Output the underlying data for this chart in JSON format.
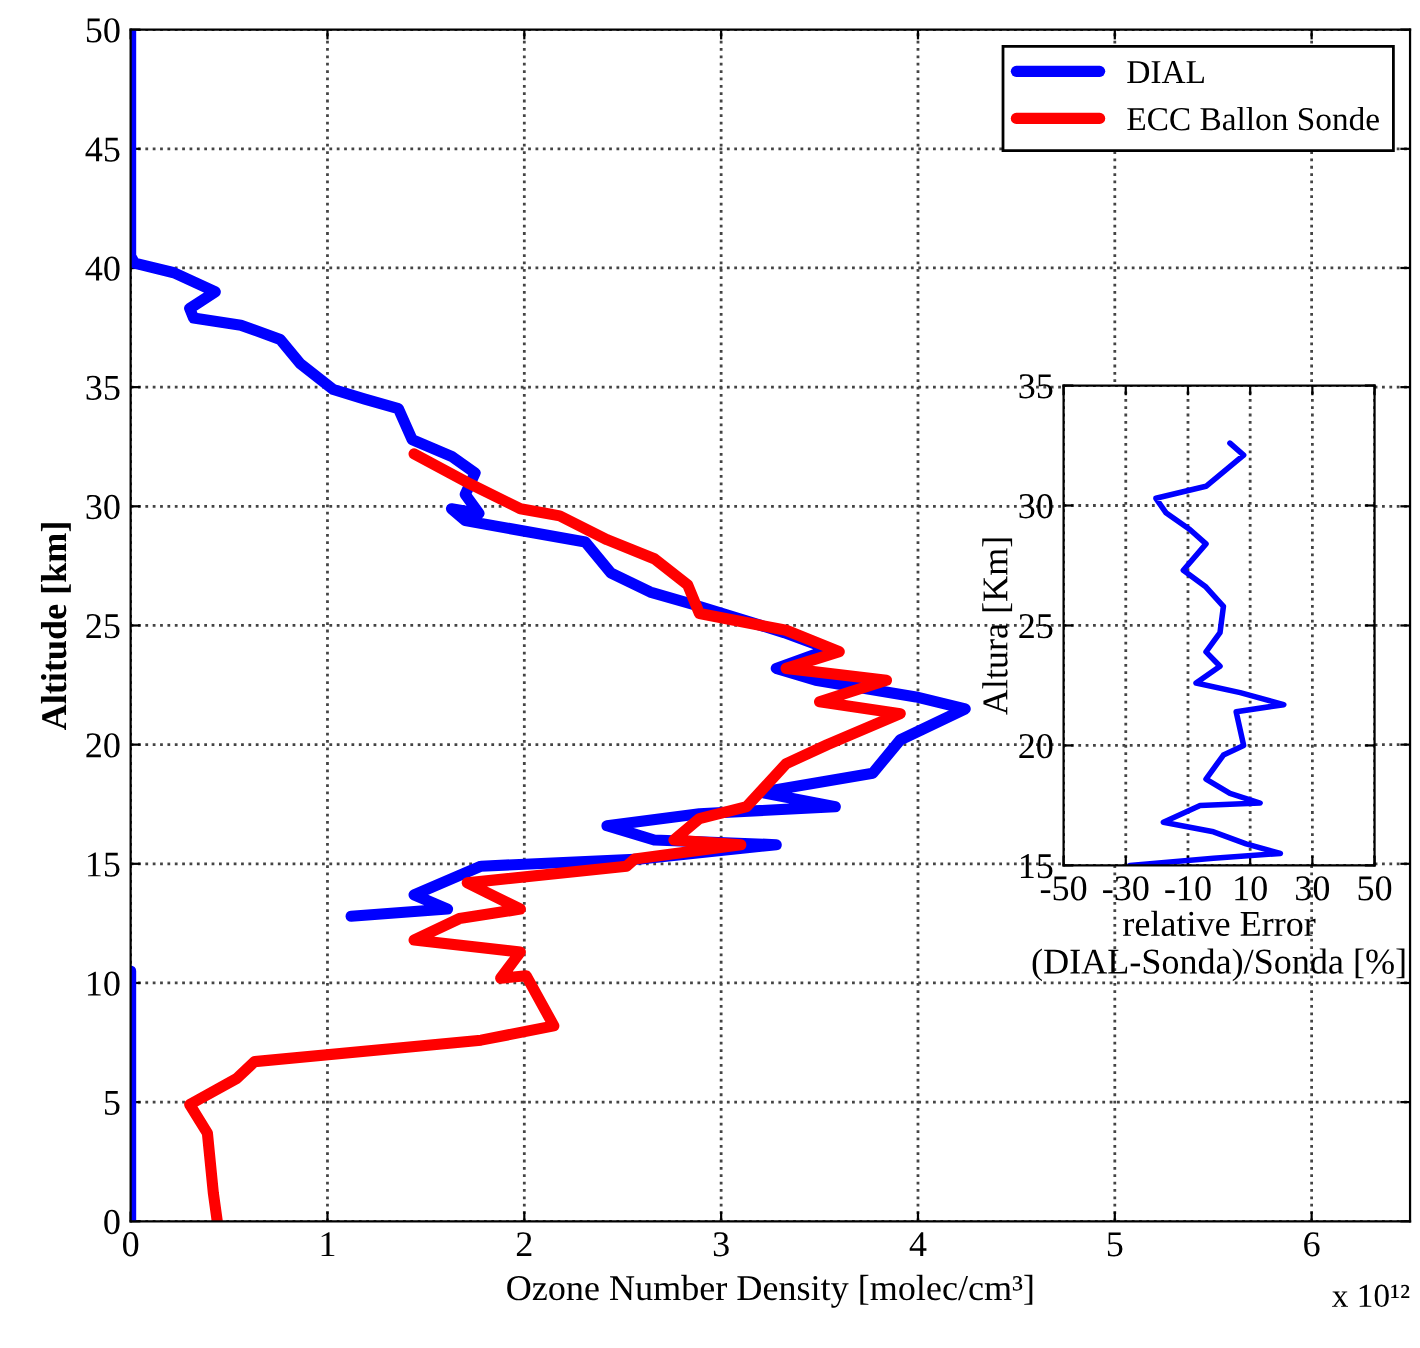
{
  "chart_data": [
    {
      "type": "line",
      "xlabel": "Ozone Number Density [molec/cm³]",
      "ylabel": "Altitude [km]",
      "annotations": [
        "x 10¹²"
      ],
      "xlim": [
        0,
        6.5
      ],
      "xticks": [
        0,
        1,
        2,
        3,
        4,
        5,
        6
      ],
      "ylim": [
        0,
        50
      ],
      "yticks": [
        0,
        5,
        10,
        15,
        20,
        25,
        30,
        35,
        40,
        45,
        50
      ],
      "grid": true,
      "legend": "top right",
      "line_style": "solid",
      "marker": "none",
      "series": [
        {
          "name": "DIAL",
          "color": "#0000ff",
          "x": [
            0,
            0,
            0.02,
            0.22,
            0.43,
            0.3,
            0.32,
            0.56,
            0.76,
            0.86,
            1.03,
            1.19,
            1.36,
            1.43,
            1.63,
            1.75,
            1.7,
            1.77,
            1.63,
            1.7,
            2.31,
            2.44,
            2.64,
            2.85,
            3.32,
            3.55,
            3.28,
            3.48,
            3.99,
            4.24,
            3.91,
            3.77,
            3.2,
            3.58,
            2.89,
            2.42,
            2.66,
            3.28,
            2.59,
            1.78,
            1.44,
            1.61,
            1.12,
            null,
            0,
            0
          ],
          "values": [
            50,
            40.5,
            40.2,
            39.8,
            39.0,
            38.3,
            37.9,
            37.6,
            37.0,
            36.0,
            34.9,
            34.5,
            34.1,
            32.8,
            32.1,
            31.4,
            30.5,
            29.7,
            29.9,
            29.4,
            28.5,
            27.2,
            26.4,
            25.9,
            24.7,
            24.0,
            23.2,
            22.7,
            22.0,
            21.5,
            20.2,
            18.8,
            18.0,
            17.4,
            17.1,
            16.6,
            16.0,
            15.8,
            15.2,
            14.9,
            13.7,
            13.1,
            12.8,
            null,
            10.5,
            0
          ]
        },
        {
          "name": "ECC Ballon Sonde",
          "color": "#ff0000",
          "x": [
            1.44,
            1.71,
            1.98,
            2.18,
            2.42,
            2.66,
            2.83,
            2.89,
            3.33,
            3.6,
            3.33,
            3.84,
            3.5,
            3.91,
            3.54,
            3.33,
            3.13,
            2.89,
            2.76,
            3.1,
            2.56,
            2.52,
            1.71,
            1.98,
            1.67,
            1.44,
            1.98,
            1.88,
            2.01,
            2.15,
            1.78,
            0.63,
            0.54,
            0.3,
            0.39,
            0.42,
            0.44
          ],
          "values": [
            32.2,
            31.0,
            29.9,
            29.6,
            28.6,
            27.8,
            26.7,
            25.5,
            24.8,
            23.9,
            23.2,
            22.7,
            21.8,
            21.3,
            20.0,
            19.2,
            17.4,
            16.9,
            16.0,
            15.8,
            15.2,
            14.9,
            14.2,
            13.1,
            12.7,
            11.8,
            11.3,
            10.2,
            10.3,
            8.2,
            7.6,
            6.7,
            6.0,
            4.9,
            3.7,
            1.2,
            0
          ]
        }
      ]
    },
    {
      "type": "line",
      "xlabel": "relative Error\n(DIAL-Sonda)/Sonda [%]",
      "ylabel": "Altura [Km]",
      "xlim": [
        -50,
        50
      ],
      "xticks": [
        -50,
        -30,
        -10,
        10,
        30,
        50
      ],
      "ylim": [
        15,
        35
      ],
      "yticks": [
        15,
        20,
        25,
        30,
        35
      ],
      "grid": true,
      "line_style": "solid",
      "marker": "none",
      "series": [
        {
          "color": "#0000ff",
          "x": [
            3.5,
            7.9,
            -4.2,
            -20.3,
            -17.1,
            -9.4,
            -4.2,
            -11.5,
            -4.2,
            1.4,
            0.3,
            -4.2,
            0.3,
            -7.4,
            6.8,
            20.8,
            5.5,
            7.9,
            1.4,
            -4.2,
            3.5,
            13.2,
            -6.1,
            -17.9,
            -1.8,
            8.7,
            19.7,
            -1.8,
            -28.7
          ],
          "values": [
            32.6,
            32.1,
            30.8,
            30.3,
            29.7,
            29.0,
            28.4,
            27.3,
            26.6,
            25.8,
            24.7,
            23.9,
            23.3,
            22.6,
            22.2,
            21.7,
            21.4,
            20.0,
            19.6,
            18.6,
            18.0,
            17.6,
            17.5,
            16.8,
            16.4,
            15.9,
            15.5,
            15.3,
            15.0
          ]
        }
      ]
    }
  ]
}
